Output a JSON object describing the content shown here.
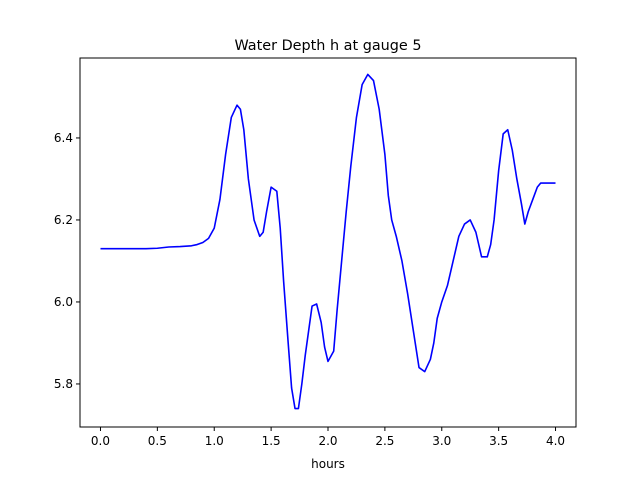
{
  "chart_data": {
    "type": "line",
    "title": "Water Depth h at gauge 5",
    "xlabel": "hours",
    "ylabel": "",
    "xlim": [
      -0.18,
      4.18
    ],
    "ylim": [
      5.695,
      6.595
    ],
    "xticks": [
      0.0,
      0.5,
      1.0,
      1.5,
      2.0,
      2.5,
      3.0,
      3.5,
      4.0
    ],
    "xtick_labels": [
      "0.0",
      "0.5",
      "1.0",
      "1.5",
      "2.0",
      "2.5",
      "3.0",
      "3.5",
      "4.0"
    ],
    "yticks": [
      5.8,
      6.0,
      6.2,
      6.4
    ],
    "ytick_labels": [
      "5.8",
      "6.0",
      "6.2",
      "6.4"
    ],
    "grid": false,
    "series": [
      {
        "color": "#0000ff",
        "x": [
          0.0,
          0.2,
          0.4,
          0.5,
          0.6,
          0.7,
          0.8,
          0.85,
          0.9,
          0.95,
          1.0,
          1.05,
          1.1,
          1.15,
          1.2,
          1.23,
          1.26,
          1.3,
          1.35,
          1.4,
          1.43,
          1.46,
          1.5,
          1.55,
          1.58,
          1.61,
          1.65,
          1.68,
          1.71,
          1.74,
          1.77,
          1.8,
          1.83,
          1.86,
          1.9,
          1.94,
          1.97,
          2.0,
          2.05,
          2.08,
          2.12,
          2.16,
          2.2,
          2.25,
          2.3,
          2.35,
          2.4,
          2.45,
          2.5,
          2.53,
          2.56,
          2.6,
          2.65,
          2.7,
          2.75,
          2.8,
          2.85,
          2.9,
          2.93,
          2.96,
          3.0,
          3.05,
          3.1,
          3.15,
          3.2,
          3.25,
          3.3,
          3.35,
          3.4,
          3.43,
          3.46,
          3.5,
          3.54,
          3.58,
          3.62,
          3.66,
          3.7,
          3.73,
          3.76,
          3.8,
          3.84,
          3.87,
          3.9,
          3.94,
          3.98,
          4.0
        ],
        "values": [
          6.13,
          6.13,
          6.13,
          6.131,
          6.134,
          6.135,
          6.137,
          6.14,
          6.145,
          6.155,
          6.18,
          6.25,
          6.36,
          6.45,
          6.48,
          6.47,
          6.42,
          6.3,
          6.2,
          6.16,
          6.17,
          6.22,
          6.28,
          6.27,
          6.18,
          6.05,
          5.9,
          5.79,
          5.74,
          5.74,
          5.8,
          5.87,
          5.93,
          5.99,
          5.995,
          5.95,
          5.89,
          5.855,
          5.88,
          5.98,
          6.1,
          6.22,
          6.33,
          6.45,
          6.53,
          6.555,
          6.54,
          6.47,
          6.36,
          6.26,
          6.2,
          6.16,
          6.1,
          6.02,
          5.93,
          5.84,
          5.83,
          5.86,
          5.9,
          5.96,
          6.0,
          6.04,
          6.1,
          6.16,
          6.19,
          6.2,
          6.17,
          6.11,
          6.11,
          6.14,
          6.2,
          6.32,
          6.41,
          6.42,
          6.37,
          6.3,
          6.24,
          6.19,
          6.22,
          6.25,
          6.28,
          6.29,
          6.29,
          6.29,
          6.29,
          6.29
        ]
      }
    ]
  }
}
